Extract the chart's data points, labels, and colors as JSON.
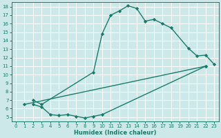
{
  "xlabel": "Humidex (Indice chaleur)",
  "bg_color": "#cce8e8",
  "grid_color": "#ffffff",
  "line_color": "#1a7a6a",
  "xlim": [
    -0.5,
    23.5
  ],
  "ylim": [
    4.5,
    18.5
  ],
  "xticks": [
    0,
    1,
    2,
    3,
    4,
    5,
    6,
    7,
    8,
    9,
    10,
    11,
    12,
    13,
    14,
    15,
    16,
    17,
    18,
    19,
    20,
    21,
    22,
    23
  ],
  "yticks": [
    5,
    6,
    7,
    8,
    9,
    10,
    11,
    12,
    13,
    14,
    15,
    16,
    17,
    18
  ],
  "line1_x": [
    2,
    3,
    9,
    10,
    11,
    12,
    13,
    14,
    15,
    16,
    17,
    18,
    20,
    21,
    22,
    23
  ],
  "line1_y": [
    7.0,
    6.5,
    10.3,
    14.8,
    17.0,
    17.5,
    18.1,
    17.8,
    16.3,
    16.5,
    16.0,
    15.5,
    13.1,
    12.2,
    12.3,
    11.2
  ],
  "line2_x": [
    1,
    22
  ],
  "line2_y": [
    6.5,
    11.0
  ],
  "line3_x": [
    2,
    3,
    4,
    5,
    6,
    7,
    8,
    9,
    10,
    22
  ],
  "line3_y": [
    6.5,
    6.2,
    5.3,
    5.2,
    5.3,
    5.1,
    4.9,
    5.1,
    5.3,
    11.0
  ],
  "marker": "D",
  "marker_size": 2.2,
  "linewidth": 1.0,
  "tick_fontsize": 5.0,
  "xlabel_fontsize": 6.0
}
